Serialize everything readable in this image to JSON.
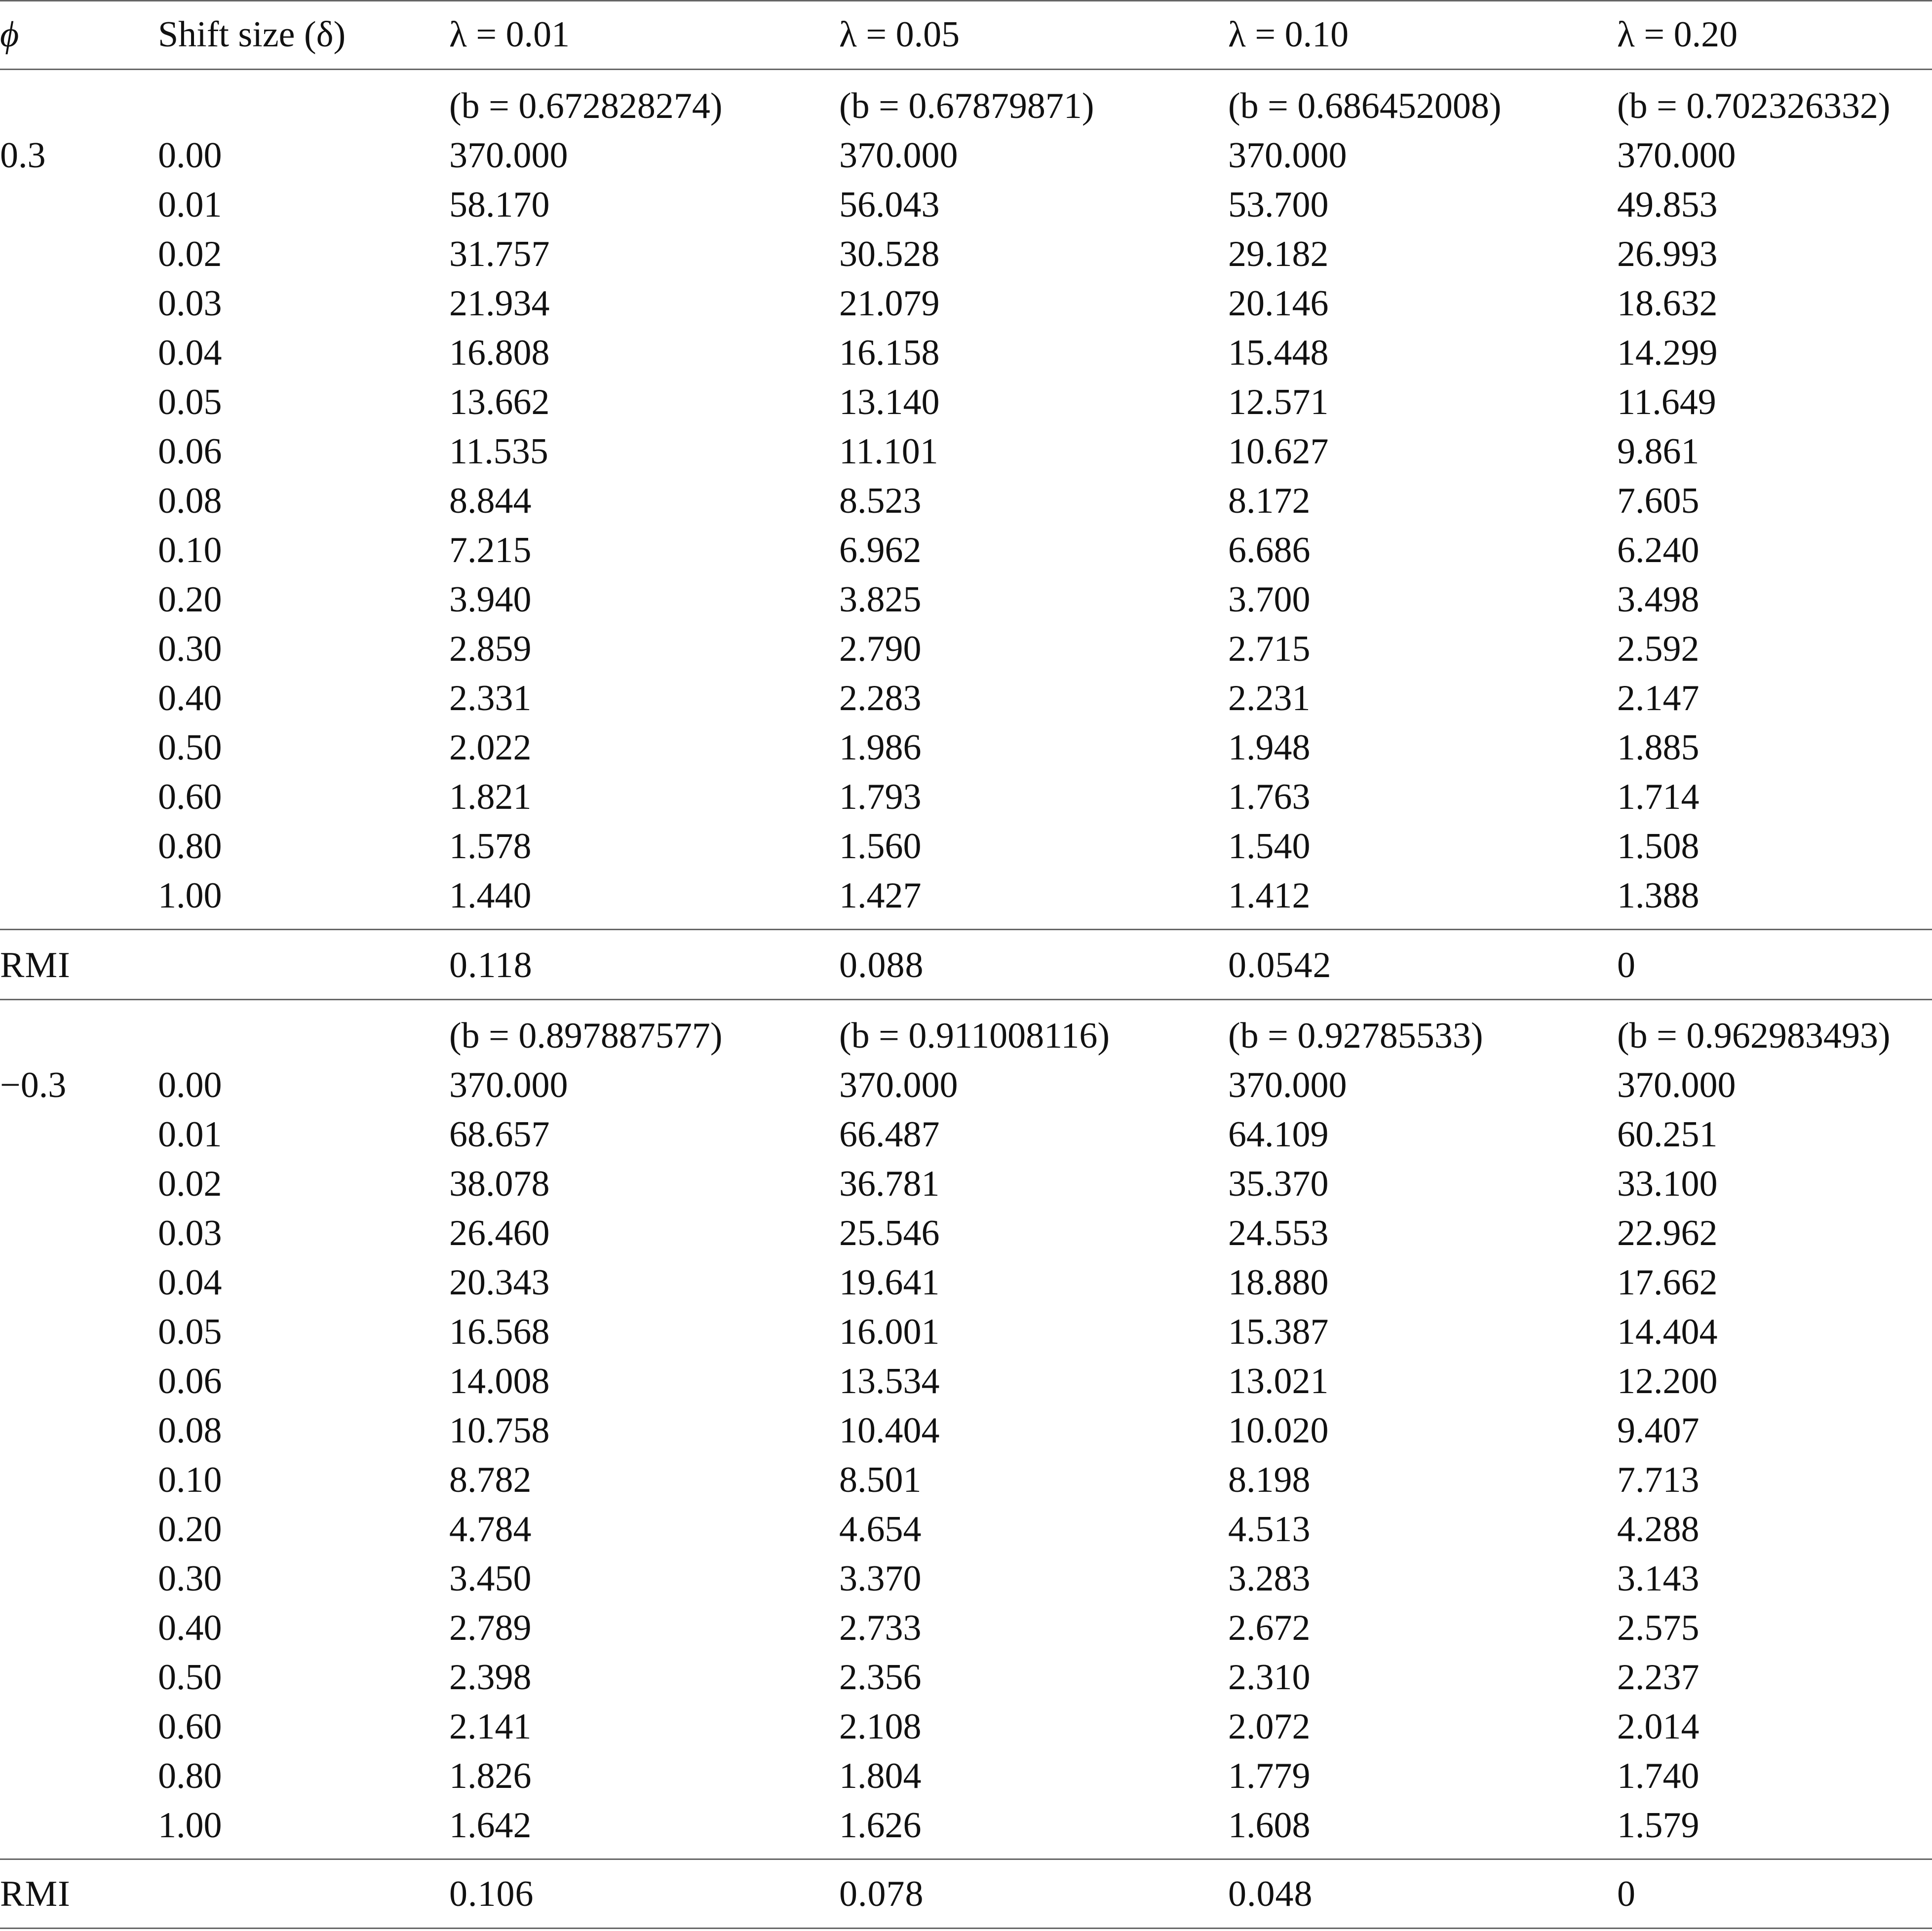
{
  "header": {
    "phi": "ϕ",
    "shift": "Shift size (δ)",
    "lambdas": [
      "λ = 0.01",
      "λ = 0.05",
      "λ = 0.10",
      "λ = 0.20"
    ]
  },
  "blocks": [
    {
      "phi": "0.3",
      "b_values": [
        "(b = 0.672828274)",
        "(b = 0.67879871)",
        "(b = 0.686452008)",
        "(b = 0.702326332)"
      ],
      "rows": [
        {
          "shift": "0.00",
          "values": [
            "370.000",
            "370.000",
            "370.000",
            "370.000"
          ]
        },
        {
          "shift": "0.01",
          "values": [
            "58.170",
            "56.043",
            "53.700",
            "49.853"
          ]
        },
        {
          "shift": "0.02",
          "values": [
            "31.757",
            "30.528",
            "29.182",
            "26.993"
          ]
        },
        {
          "shift": "0.03",
          "values": [
            "21.934",
            "21.079",
            "20.146",
            "18.632"
          ]
        },
        {
          "shift": "0.04",
          "values": [
            "16.808",
            "16.158",
            "15.448",
            "14.299"
          ]
        },
        {
          "shift": "0.05",
          "values": [
            "13.662",
            "13.140",
            "12.571",
            "11.649"
          ]
        },
        {
          "shift": "0.06",
          "values": [
            "11.535",
            "11.101",
            "10.627",
            "9.861"
          ]
        },
        {
          "shift": "0.08",
          "values": [
            "8.844",
            "8.523",
            "8.172",
            "7.605"
          ]
        },
        {
          "shift": "0.10",
          "values": [
            "7.215",
            "6.962",
            "6.686",
            "6.240"
          ]
        },
        {
          "shift": "0.20",
          "values": [
            "3.940",
            "3.825",
            "3.700",
            "3.498"
          ]
        },
        {
          "shift": "0.30",
          "values": [
            "2.859",
            "2.790",
            "2.715",
            "2.592"
          ]
        },
        {
          "shift": "0.40",
          "values": [
            "2.331",
            "2.283",
            "2.231",
            "2.147"
          ]
        },
        {
          "shift": "0.50",
          "values": [
            "2.022",
            "1.986",
            "1.948",
            "1.885"
          ]
        },
        {
          "shift": "0.60",
          "values": [
            "1.821",
            "1.793",
            "1.763",
            "1.714"
          ]
        },
        {
          "shift": "0.80",
          "values": [
            "1.578",
            "1.560",
            "1.540",
            "1.508"
          ]
        },
        {
          "shift": "1.00",
          "values": [
            "1.440",
            "1.427",
            "1.412",
            "1.388"
          ]
        }
      ],
      "rmi": {
        "label": "RMI",
        "values": [
          "0.118",
          "0.088",
          "0.0542",
          "0"
        ]
      }
    },
    {
      "phi": "−0.3",
      "b_values": [
        "(b = 0.897887577)",
        "(b = 0.911008116)",
        "(b = 0.92785533)",
        "(b = 0.962983493)"
      ],
      "rows": [
        {
          "shift": "0.00",
          "values": [
            "370.000",
            "370.000",
            "370.000",
            "370.000"
          ]
        },
        {
          "shift": "0.01",
          "values": [
            "68.657",
            "66.487",
            "64.109",
            "60.251"
          ]
        },
        {
          "shift": "0.02",
          "values": [
            "38.078",
            "36.781",
            "35.370",
            "33.100"
          ]
        },
        {
          "shift": "0.03",
          "values": [
            "26.460",
            "25.546",
            "24.553",
            "22.962"
          ]
        },
        {
          "shift": "0.04",
          "values": [
            "20.343",
            "19.641",
            "18.880",
            "17.662"
          ]
        },
        {
          "shift": "0.05",
          "values": [
            "16.568",
            "16.001",
            "15.387",
            "14.404"
          ]
        },
        {
          "shift": "0.06",
          "values": [
            "14.008",
            "13.534",
            "13.021",
            "12.200"
          ]
        },
        {
          "shift": "0.08",
          "values": [
            "10.758",
            "10.404",
            "10.020",
            "9.407"
          ]
        },
        {
          "shift": "0.10",
          "values": [
            "8.782",
            "8.501",
            "8.198",
            "7.713"
          ]
        },
        {
          "shift": "0.20",
          "values": [
            "4.784",
            "4.654",
            "4.513",
            "4.288"
          ]
        },
        {
          "shift": "0.30",
          "values": [
            "3.450",
            "3.370",
            "3.283",
            "3.143"
          ]
        },
        {
          "shift": "0.40",
          "values": [
            "2.789",
            "2.733",
            "2.672",
            "2.575"
          ]
        },
        {
          "shift": "0.50",
          "values": [
            "2.398",
            "2.356",
            "2.310",
            "2.237"
          ]
        },
        {
          "shift": "0.60",
          "values": [
            "2.141",
            "2.108",
            "2.072",
            "2.014"
          ]
        },
        {
          "shift": "0.80",
          "values": [
            "1.826",
            "1.804",
            "1.779",
            "1.740"
          ]
        },
        {
          "shift": "1.00",
          "values": [
            "1.642",
            "1.626",
            "1.608",
            "1.579"
          ]
        }
      ],
      "rmi": {
        "label": "RMI",
        "values": [
          "0.106",
          "0.078",
          "0.048",
          "0"
        ]
      }
    }
  ]
}
